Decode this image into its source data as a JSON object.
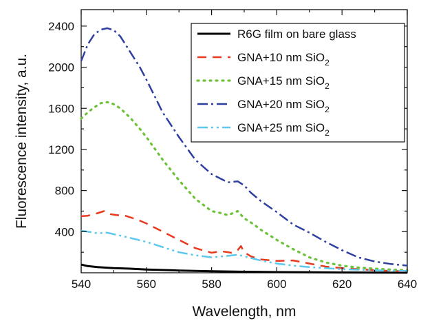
{
  "chart_data": {
    "type": "line",
    "xlabel": "Wavelength, nm",
    "ylabel": "Fluorescence intensity, a.u.",
    "xlim": [
      540,
      640
    ],
    "ylim": [
      0,
      2560
    ],
    "x_ticks": [
      540,
      560,
      580,
      600,
      620,
      640
    ],
    "y_ticks": [
      400,
      800,
      1200,
      1600,
      2000,
      2400
    ],
    "grid": false,
    "legend_position": "top-right",
    "series": [
      {
        "name": "R6G film on bare glass",
        "sub": "",
        "color": "#000000",
        "dash": "",
        "width": 3,
        "x": [
          540,
          542,
          545,
          550,
          555,
          560,
          570,
          580,
          590,
          600,
          610,
          620,
          630,
          640
        ],
        "y": [
          80,
          65,
          55,
          45,
          40,
          32,
          22,
          15,
          10,
          7,
          5,
          3,
          2,
          1
        ]
      },
      {
        "name": "GNA+10 nm SiO",
        "sub": "2",
        "color": "#e8391e",
        "dash": "13 9",
        "width": 2.5,
        "x": [
          540,
          542,
          545,
          547,
          549,
          551,
          553,
          555,
          557,
          560,
          565,
          570,
          575,
          580,
          583,
          586,
          588,
          589,
          590,
          592,
          595,
          600,
          605,
          610,
          615,
          620,
          625,
          630,
          635,
          640
        ],
        "y": [
          550,
          555,
          580,
          600,
          570,
          560,
          560,
          540,
          520,
          480,
          400,
          320,
          240,
          195,
          210,
          195,
          220,
          260,
          200,
          160,
          130,
          115,
          120,
          90,
          60,
          45,
          35,
          25,
          18,
          15
        ]
      },
      {
        "name": "GNA+15 nm SiO",
        "sub": "2",
        "color": "#6ec23a",
        "dash": "2 7",
        "width": 3.2,
        "x": [
          540,
          542,
          544,
          546,
          548,
          550,
          552,
          555,
          558,
          560,
          565,
          570,
          575,
          580,
          583,
          585,
          588,
          590,
          593,
          595,
          600,
          605,
          610,
          615,
          620,
          625,
          630,
          635,
          640
        ],
        "y": [
          1500,
          1560,
          1610,
          1650,
          1660,
          1640,
          1600,
          1510,
          1400,
          1320,
          1100,
          900,
          720,
          600,
          580,
          560,
          600,
          530,
          470,
          420,
          320,
          230,
          150,
          100,
          70,
          50,
          40,
          30,
          25
        ]
      },
      {
        "name": "GNA+20 nm SiO",
        "sub": "2",
        "color": "#2f3fa0",
        "dash": "15 5 3 5",
        "width": 2.5,
        "x": [
          540,
          542,
          544,
          546,
          548,
          550,
          552,
          554,
          556,
          558,
          560,
          565,
          570,
          575,
          580,
          585,
          588,
          590,
          592,
          595,
          600,
          605,
          610,
          615,
          620,
          625,
          630,
          635,
          640
        ],
        "y": [
          2060,
          2220,
          2320,
          2365,
          2380,
          2360,
          2300,
          2200,
          2100,
          2000,
          1880,
          1560,
          1320,
          1100,
          960,
          880,
          890,
          850,
          780,
          700,
          590,
          470,
          390,
          300,
          220,
          150,
          110,
          85,
          70
        ]
      },
      {
        "name": "GNA+25 nm SiO",
        "sub": "2",
        "color": "#5cc8ee",
        "dash": "15 5 3 5 3 5",
        "width": 2.5,
        "x": [
          540,
          542,
          545,
          548,
          550,
          555,
          560,
          565,
          570,
          575,
          580,
          585,
          588,
          590,
          595,
          600,
          605,
          610,
          615,
          620,
          625,
          630,
          635,
          640
        ],
        "y": [
          410,
          400,
          385,
          390,
          375,
          340,
          300,
          250,
          200,
          170,
          150,
          165,
          175,
          160,
          120,
          90,
          70,
          55,
          45,
          35,
          30,
          25,
          20,
          18
        ]
      }
    ]
  }
}
